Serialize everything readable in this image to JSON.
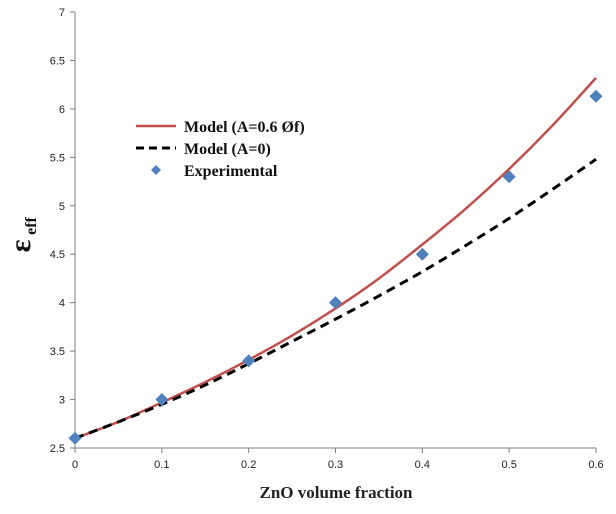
{
  "chart_data": {
    "type": "line",
    "xlabel": "ZnO volume fraction",
    "ylabel": "ε",
    "ylabel_subscript": "eff",
    "xlim": [
      0,
      0.6
    ],
    "ylim": [
      2.5,
      7
    ],
    "x_ticks": [
      "0",
      "0.1",
      "0.2",
      "0.3",
      "0.4",
      "0.5",
      "0.6"
    ],
    "y_ticks": [
      "2.5",
      "3",
      "3.5",
      "4",
      "4.5",
      "5",
      "5.5",
      "6",
      "6.5",
      "7"
    ],
    "legend_position": "upper-left",
    "grid": false,
    "series": [
      {
        "name": "Model (A=0.6 Øf)",
        "style": "solid-line",
        "color": "#c0504d",
        "x": [
          0,
          0.05,
          0.1,
          0.15,
          0.2,
          0.25,
          0.3,
          0.35,
          0.4,
          0.45,
          0.5,
          0.55,
          0.6
        ],
        "y": [
          2.6,
          2.77,
          2.97,
          3.18,
          3.41,
          3.66,
          3.94,
          4.25,
          4.6,
          4.97,
          5.38,
          5.83,
          6.32
        ]
      },
      {
        "name": "Model (A=0)",
        "style": "dashed-line",
        "color": "#000000",
        "x": [
          0,
          0.05,
          0.1,
          0.15,
          0.2,
          0.25,
          0.3,
          0.35,
          0.4,
          0.45,
          0.5,
          0.55,
          0.6
        ],
        "y": [
          2.6,
          2.77,
          2.95,
          3.15,
          3.37,
          3.6,
          3.83,
          4.07,
          4.32,
          4.59,
          4.87,
          5.17,
          5.48
        ]
      },
      {
        "name": "Experimental",
        "style": "markers",
        "marker": "diamond",
        "color": "#4f81bd",
        "x": [
          0,
          0.1,
          0.2,
          0.3,
          0.4,
          0.5,
          0.6
        ],
        "y": [
          2.6,
          3.0,
          3.4,
          4.0,
          4.5,
          5.3,
          6.13
        ]
      }
    ]
  }
}
